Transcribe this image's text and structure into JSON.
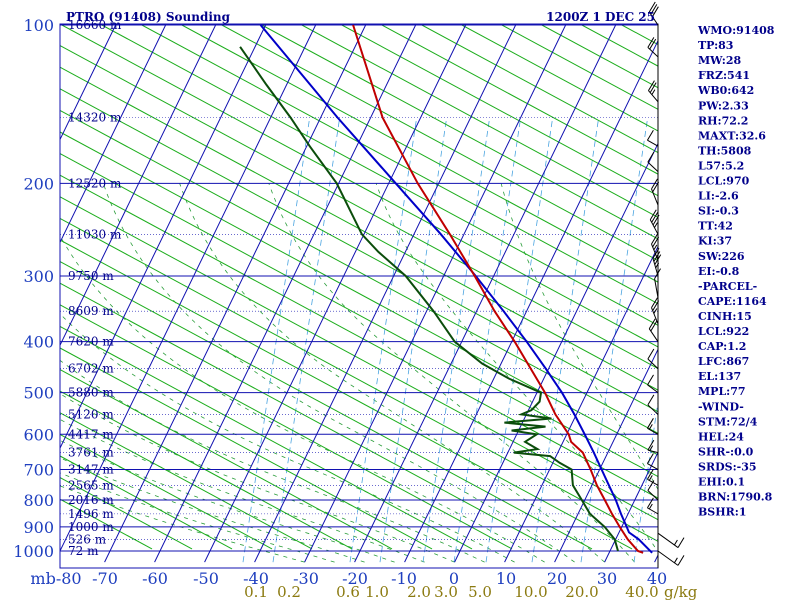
{
  "header": {
    "title": "PTRO (91408) Sounding",
    "time": "1200Z  1 DEC 25"
  },
  "colors": {
    "grid": "#1010b0",
    "dry_adiabat": "#1cad1c",
    "moist_adiabat": "#2a9d3a",
    "mixing_ratio": "#4aa4e0",
    "temperature": "#c00000",
    "dewpoint": "#0b4d0b",
    "parcel": "#0000c8",
    "text": "#00008b",
    "mixing_label": "#8b7a10"
  },
  "chart_data": {
    "type": "skew-t",
    "title": "PTRO (91408) Sounding",
    "valid": "1200Z  1 DEC 25",
    "pressure_unit": "mb",
    "pressure_levels": [
      100,
      200,
      300,
      400,
      500,
      600,
      700,
      800,
      900,
      1000
    ],
    "pressure_range": [
      100,
      1050
    ],
    "temperature_ticks": [
      -80,
      -70,
      -60,
      -50,
      -40,
      -30,
      -20,
      -10,
      0,
      10,
      20,
      30,
      40
    ],
    "temperature_tick_labels": [
      "mb-80",
      "-70",
      "-60",
      "-50",
      "-40",
      "-30",
      "-20",
      "-10",
      "0",
      "10",
      "20",
      "30",
      "40"
    ],
    "mixing_ratio_labels": [
      {
        "label": "0.1",
        "w": 0.1
      },
      {
        "label": "0.2",
        "w": 0.2
      },
      {
        "label": "0.6",
        "w": 0.6
      },
      {
        "label": "1.0",
        "w": 1.0
      },
      {
        "label": "2.0",
        "w": 2.0
      },
      {
        "label": "3.0",
        "w": 3.0
      },
      {
        "label": "5.0",
        "w": 5.0
      },
      {
        "label": "10.0",
        "w": 10.0
      },
      {
        "label": "20.0",
        "w": 20.0
      },
      {
        "label": "40.0",
        "w": 40.0
      }
    ],
    "mixing_ratio_unit": "g/kg",
    "height_labels": [
      {
        "p": 100,
        "label": "16660 m"
      },
      {
        "p": 150,
        "label": "14320 m"
      },
      {
        "p": 200,
        "label": "12520 m"
      },
      {
        "p": 250,
        "label": "11030 m"
      },
      {
        "p": 300,
        "label": "9750 m"
      },
      {
        "p": 350,
        "label": "8609 m"
      },
      {
        "p": 400,
        "label": "7620 m"
      },
      {
        "p": 450,
        "label": "6702 m"
      },
      {
        "p": 500,
        "label": "5880 m"
      },
      {
        "p": 550,
        "label": "5120 m"
      },
      {
        "p": 600,
        "label": "4417 m"
      },
      {
        "p": 650,
        "label": "3761 m"
      },
      {
        "p": 700,
        "label": "3147 m"
      },
      {
        "p": 750,
        "label": "2565 m"
      },
      {
        "p": 800,
        "label": "2016 m"
      },
      {
        "p": 850,
        "label": "1496 m"
      },
      {
        "p": 900,
        "label": "1000 m"
      },
      {
        "p": 950,
        "label": "526 m"
      },
      {
        "p": 1000,
        "label": "72 m"
      }
    ],
    "temperature_profile": [
      {
        "p": 1008,
        "t": 26.8
      },
      {
        "p": 1000,
        "t": 25.6
      },
      {
        "p": 950,
        "t": 22.4
      },
      {
        "p": 900,
        "t": 19.6
      },
      {
        "p": 850,
        "t": 16.8
      },
      {
        "p": 800,
        "t": 14.0
      },
      {
        "p": 750,
        "t": 11.0
      },
      {
        "p": 700,
        "t": 8.2
      },
      {
        "p": 650,
        "t": 5.0
      },
      {
        "p": 620,
        "t": 1.6
      },
      {
        "p": 600,
        "t": 0.4
      },
      {
        "p": 550,
        "t": -4.2
      },
      {
        "p": 500,
        "t": -8.4
      },
      {
        "p": 450,
        "t": -13.6
      },
      {
        "p": 400,
        "t": -19.4
      },
      {
        "p": 350,
        "t": -26.4
      },
      {
        "p": 300,
        "t": -33.8
      },
      {
        "p": 250,
        "t": -42.8
      },
      {
        "p": 200,
        "t": -54.2
      },
      {
        "p": 150,
        "t": -67.6
      },
      {
        "p": 100,
        "t": -82.5
      }
    ],
    "dewpoint_profile": [
      {
        "p": 1000,
        "t": 21.6
      },
      {
        "p": 950,
        "t": 19.8
      },
      {
        "p": 900,
        "t": 16.6
      },
      {
        "p": 850,
        "t": 12.4
      },
      {
        "p": 800,
        "t": 9.4
      },
      {
        "p": 750,
        "t": 6.2
      },
      {
        "p": 700,
        "t": 4.4
      },
      {
        "p": 680,
        "t": 1.4
      },
      {
        "p": 660,
        "t": -1.2
      },
      {
        "p": 650,
        "t": -8.8
      },
      {
        "p": 640,
        "t": -4.4
      },
      {
        "p": 620,
        "t": -7.6
      },
      {
        "p": 600,
        "t": -6.0
      },
      {
        "p": 590,
        "t": -11.4
      },
      {
        "p": 580,
        "t": -5.0
      },
      {
        "p": 570,
        "t": -13.6
      },
      {
        "p": 560,
        "t": -4.6
      },
      {
        "p": 550,
        "t": -11.0
      },
      {
        "p": 540,
        "t": -9.4
      },
      {
        "p": 520,
        "t": -8.6
      },
      {
        "p": 500,
        "t": -9.2
      },
      {
        "p": 470,
        "t": -17.0
      },
      {
        "p": 440,
        "t": -23.8
      },
      {
        "p": 400,
        "t": -31.4
      },
      {
        "p": 350,
        "t": -38.6
      },
      {
        "p": 300,
        "t": -47.6
      },
      {
        "p": 270,
        "t": -55.4
      },
      {
        "p": 250,
        "t": -60.4
      },
      {
        "p": 200,
        "t": -70.4
      },
      {
        "p": 170,
        "t": -79.4
      },
      {
        "p": 150,
        "t": -86.0
      },
      {
        "p": 130,
        "t": -94.0
      },
      {
        "p": 110,
        "t": -103.0
      }
    ],
    "parcel_profile": [
      {
        "p": 1008,
        "t": 28.6
      },
      {
        "p": 950,
        "t": 24.6
      },
      {
        "p": 922,
        "t": 22.0
      },
      {
        "p": 900,
        "t": 21.0
      },
      {
        "p": 850,
        "t": 18.6
      },
      {
        "p": 800,
        "t": 16.2
      },
      {
        "p": 750,
        "t": 13.4
      },
      {
        "p": 700,
        "t": 10.4
      },
      {
        "p": 650,
        "t": 7.2
      },
      {
        "p": 600,
        "t": 3.6
      },
      {
        "p": 550,
        "t": -0.4
      },
      {
        "p": 500,
        "t": -5.0
      },
      {
        "p": 450,
        "t": -10.6
      },
      {
        "p": 400,
        "t": -17.0
      },
      {
        "p": 350,
        "t": -24.6
      },
      {
        "p": 300,
        "t": -33.6
      },
      {
        "p": 250,
        "t": -44.6
      },
      {
        "p": 200,
        "t": -58.6
      },
      {
        "p": 150,
        "t": -76.6
      },
      {
        "p": 100,
        "t": -101.0
      }
    ]
  },
  "wind_barbs": [
    {
      "p": 100,
      "dir": 290,
      "spd": 30
    },
    {
      "p": 115,
      "dir": 280,
      "spd": 20
    },
    {
      "p": 140,
      "dir": 285,
      "spd": 15
    },
    {
      "p": 170,
      "dir": 270,
      "spd": 10
    },
    {
      "p": 190,
      "dir": 280,
      "spd": 10
    },
    {
      "p": 220,
      "dir": 300,
      "spd": 20
    },
    {
      "p": 250,
      "dir": 295,
      "spd": 25
    },
    {
      "p": 280,
      "dir": 300,
      "spd": 15
    },
    {
      "p": 300,
      "dir": 305,
      "spd": 25
    },
    {
      "p": 330,
      "dir": 310,
      "spd": 10
    },
    {
      "p": 370,
      "dir": 300,
      "spd": 15
    },
    {
      "p": 400,
      "dir": 290,
      "spd": 20
    },
    {
      "p": 450,
      "dir": 280,
      "spd": 10
    },
    {
      "p": 500,
      "dir": 275,
      "spd": 10
    },
    {
      "p": 550,
      "dir": 280,
      "spd": 10
    },
    {
      "p": 600,
      "dir": 270,
      "spd": 5
    },
    {
      "p": 650,
      "dir": 260,
      "spd": 5
    },
    {
      "p": 700,
      "dir": 270,
      "spd": 10
    },
    {
      "p": 750,
      "dir": 270,
      "spd": 5
    },
    {
      "p": 800,
      "dir": 280,
      "spd": 10
    },
    {
      "p": 850,
      "dir": 270,
      "spd": 5
    },
    {
      "p": 925,
      "dir": 180,
      "spd": 5
    },
    {
      "p": 1000,
      "dir": 180,
      "spd": 5
    }
  ],
  "indices": [
    "WMO:91408",
    "TP:83",
    "MW:28",
    "FRZ:541",
    "WB0:642",
    "PW:2.33",
    "RH:72.2",
    "MAXT:32.6",
    "TH:5808",
    "L57:5.2",
    "LCL:970",
    "LI:-2.6",
    "SI:-0.3",
    "TT:42",
    "KI:37",
    "SW:226",
    "EI:-0.8",
    "-PARCEL-",
    "CAPE:1164",
    "CINH:15",
    "LCL:922",
    "CAP:1.2",
    "LFC:867",
    "EL:137",
    "MPL:77",
    "-WIND-",
    "STM:72/4",
    "HEL:24",
    "SHR-:0.0",
    "SRDS:-35",
    "EHI:0.1",
    "BRN:1790.8",
    "BSHR:1"
  ]
}
